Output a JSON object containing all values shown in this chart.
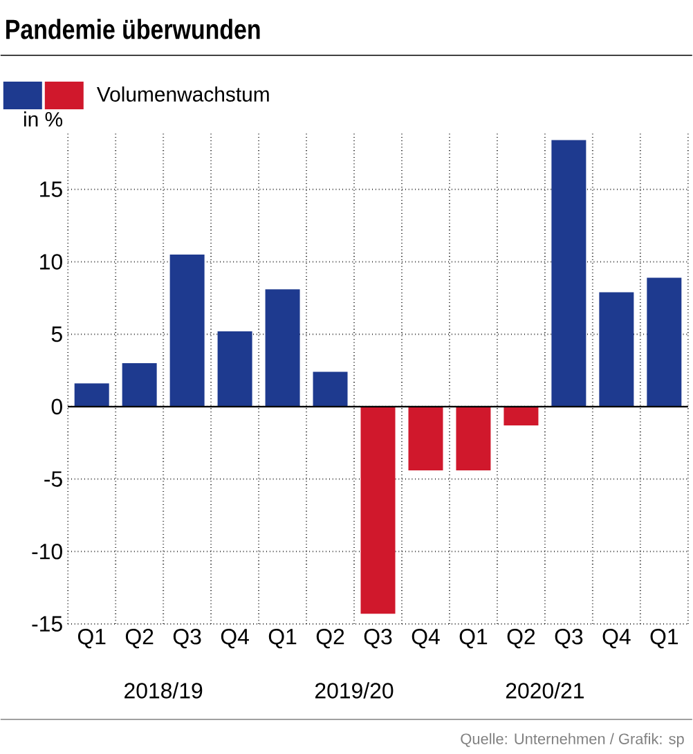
{
  "chart_data": {
    "type": "bar",
    "title": "Pandemie überwunden",
    "ylabel": "in %",
    "categories": [
      "Q1",
      "Q2",
      "Q3",
      "Q4",
      "Q1",
      "Q2",
      "Q3",
      "Q4",
      "Q1",
      "Q2",
      "Q3",
      "Q4",
      "Q1"
    ],
    "series": [
      {
        "name": "Volumenwachstum",
        "values": [
          1.6,
          3.0,
          10.5,
          5.2,
          8.1,
          2.4,
          -14.3,
          -4.4,
          -4.4,
          -1.3,
          18.4,
          7.9,
          8.9
        ],
        "colors": [
          "#1e3a8f",
          "#1e3a8f",
          "#1e3a8f",
          "#1e3a8f",
          "#1e3a8f",
          "#1e3a8f",
          "#d0182c",
          "#d0182c",
          "#d0182c",
          "#d0182c",
          "#1e3a8f",
          "#1e3a8f",
          "#1e3a8f"
        ]
      }
    ],
    "ylim": [
      -15,
      19
    ],
    "yticks": [
      -15,
      -10,
      -5,
      0,
      5,
      10,
      15
    ],
    "grid": true,
    "legend": "top left",
    "annotations": [
      "2018/19",
      "2019/20",
      "2020/21",
      "Quelle: Unternehmen / Grafik: sp"
    ]
  }
}
